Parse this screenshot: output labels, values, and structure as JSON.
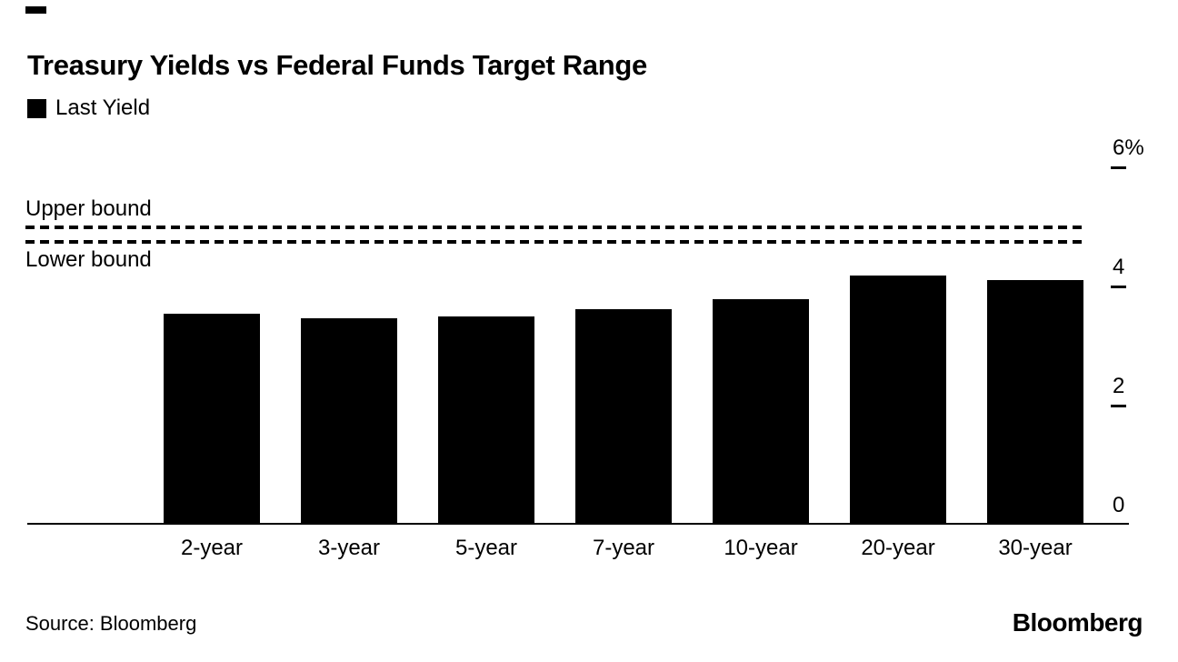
{
  "title": "Treasury Yields vs Federal Funds Target Range",
  "legend": {
    "label": "Last Yield",
    "swatch_color": "#000000"
  },
  "source": {
    "text": "Source: Bloomberg"
  },
  "footer": {
    "logo_text": "Bloomberg"
  },
  "chart_data": {
    "type": "bar",
    "title": "Treasury Yields vs Federal Funds Target Range",
    "legend_entries": [
      "Last Yield"
    ],
    "legend_position": "top-left",
    "categories": [
      "2-year",
      "3-year",
      "5-year",
      "7-year",
      "10-year",
      "20-year",
      "30-year"
    ],
    "series": [
      {
        "name": "Last Yield",
        "values": [
          3.54,
          3.47,
          3.5,
          3.62,
          3.79,
          4.18,
          4.11
        ]
      }
    ],
    "unit": "%",
    "bar_color": "#000000",
    "grid": false,
    "y_axis_side": "right",
    "ylim": [
      0,
      6.4
    ],
    "y_ticks": [
      {
        "label": "6%",
        "value": 6
      },
      {
        "label": "4",
        "value": 4
      },
      {
        "label": "2",
        "value": 2
      },
      {
        "label": "0",
        "value": 0
      }
    ],
    "reference_lines": [
      {
        "label": "Upper bound",
        "value": 5.0,
        "style": "dashed",
        "label_position": "above"
      },
      {
        "label": "Lower bound",
        "value": 4.75,
        "style": "dashed",
        "label_position": "below"
      }
    ]
  }
}
